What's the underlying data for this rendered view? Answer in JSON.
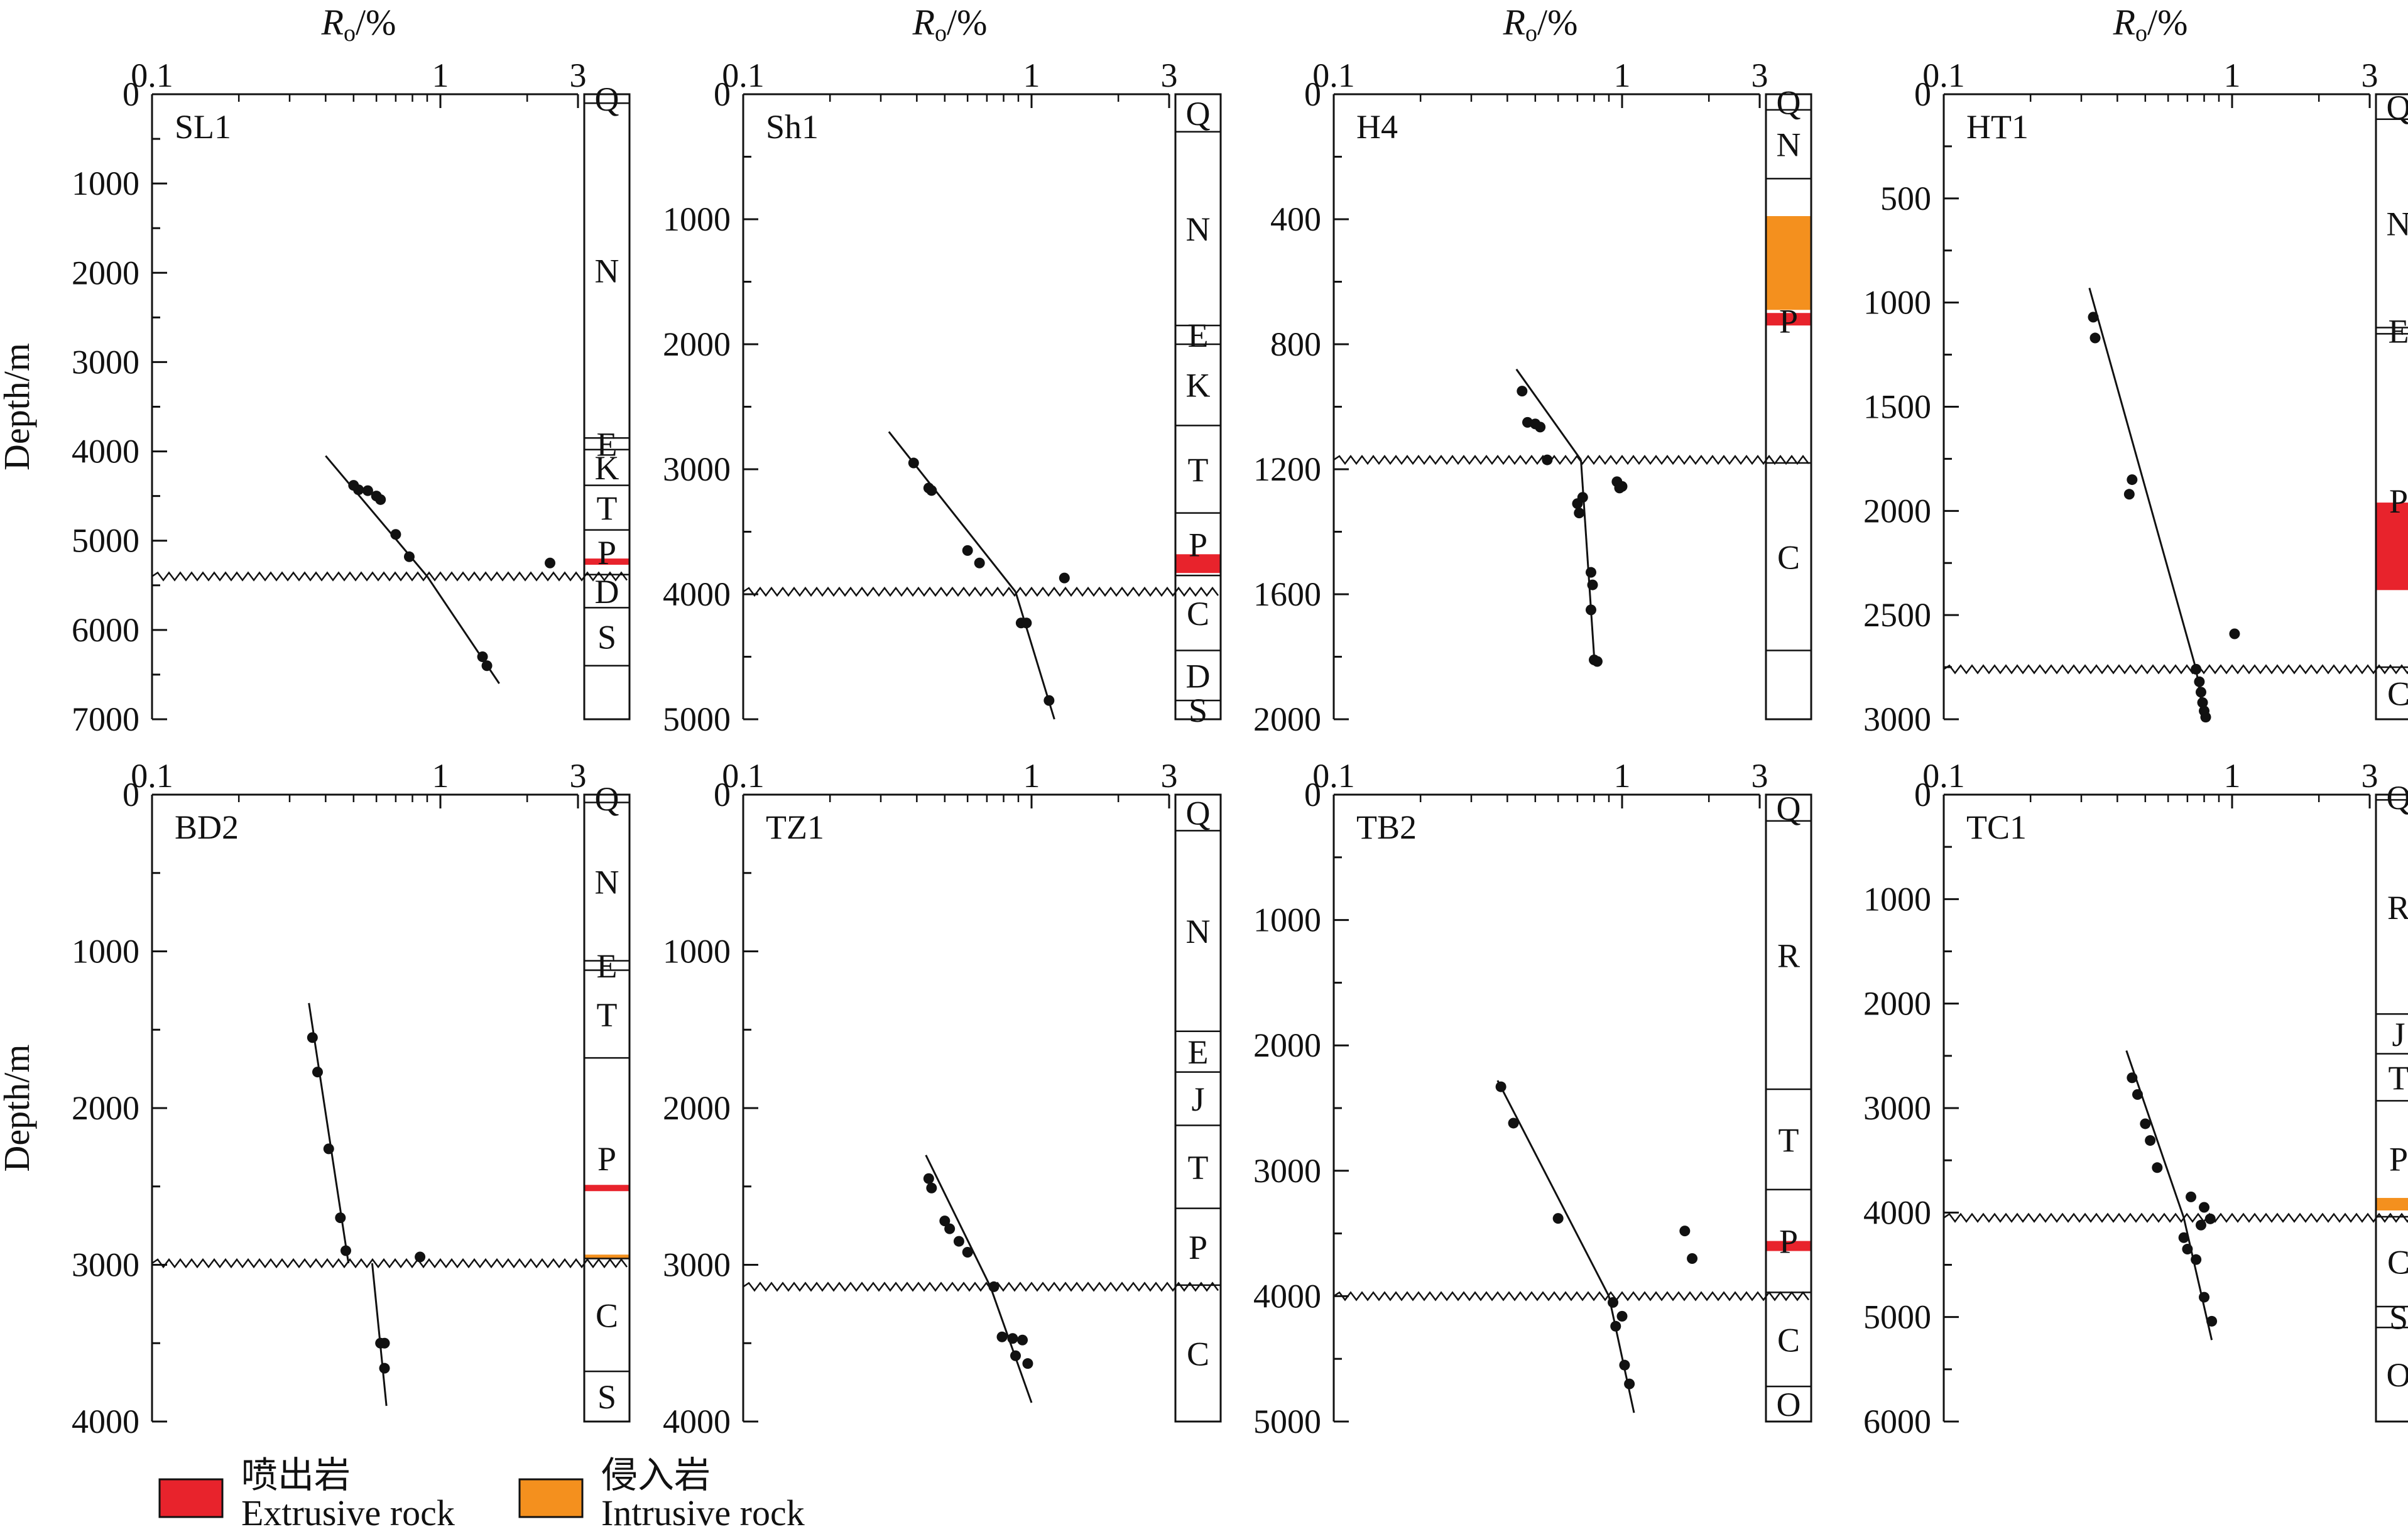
{
  "chart_data": [
    {
      "type": "scatter",
      "well": "SL1",
      "xlabel_main": "R",
      "xlabel_sub": "o",
      "xlabel_unit": "/%",
      "ylabel": "Depth/m",
      "xlim": [
        0.1,
        3
      ],
      "xscale": "log",
      "xticks": [
        "0.1",
        "1",
        "3"
      ],
      "ylim": [
        0,
        7000
      ],
      "yticks": [
        0,
        1000,
        2000,
        3000,
        4000,
        5000,
        6000,
        7000
      ],
      "unconformity_depth": 5400,
      "points": [
        [
          0.5,
          4380
        ],
        [
          0.52,
          4430
        ],
        [
          0.56,
          4440
        ],
        [
          0.6,
          4500
        ],
        [
          0.62,
          4540
        ],
        [
          0.7,
          4930
        ],
        [
          0.78,
          5180
        ],
        [
          1.4,
          6300
        ],
        [
          1.45,
          6400
        ],
        [
          2.4,
          5250
        ]
      ],
      "trend_upper": [
        [
          0.4,
          4050
        ],
        [
          0.9,
          5400
        ]
      ],
      "trend_lower": [
        [
          0.9,
          5400
        ],
        [
          1.6,
          6600
        ]
      ],
      "strata": [
        {
          "label": "Q",
          "top": 0,
          "base": 100
        },
        {
          "label": "N",
          "top": 100,
          "base": 3850
        },
        {
          "label": "E",
          "top": 3850,
          "base": 3980
        },
        {
          "label": "K",
          "top": 3980,
          "base": 4380
        },
        {
          "label": "T",
          "top": 4380,
          "base": 4880
        },
        {
          "label": "P",
          "top": 4880,
          "base": 5380
        },
        {
          "label": "D",
          "top": 5380,
          "base": 5750
        },
        {
          "label": "S",
          "top": 5750,
          "base": 6400
        },
        {
          "label": "",
          "top": 6400,
          "base": 7000
        }
      ],
      "rock_bands": [
        {
          "type": "extrusive",
          "top": 5200,
          "base": 5270
        }
      ]
    },
    {
      "type": "scatter",
      "well": "Sh1",
      "xlabel_main": "R",
      "xlabel_sub": "o",
      "xlabel_unit": "/%",
      "ylabel": "",
      "xlim": [
        0.1,
        3
      ],
      "xscale": "log",
      "xticks": [
        "0.1",
        "1",
        "3"
      ],
      "ylim": [
        0,
        5000
      ],
      "yticks": [
        0,
        1000,
        2000,
        3000,
        4000,
        5000
      ],
      "unconformity_depth": 3980,
      "points": [
        [
          0.39,
          2950
        ],
        [
          0.44,
          3150
        ],
        [
          0.45,
          3170
        ],
        [
          0.6,
          3650
        ],
        [
          0.66,
          3750
        ],
        [
          1.3,
          3870
        ],
        [
          0.92,
          4230
        ],
        [
          0.96,
          4230
        ],
        [
          1.15,
          4850
        ]
      ],
      "trend_upper": [
        [
          0.32,
          2700
        ],
        [
          0.88,
          3980
        ]
      ],
      "trend_lower": [
        [
          0.88,
          3980
        ],
        [
          1.2,
          5000
        ]
      ],
      "strata": [
        {
          "label": "Q",
          "top": 0,
          "base": 300
        },
        {
          "label": "N",
          "top": 300,
          "base": 1850
        },
        {
          "label": "E",
          "top": 1850,
          "base": 2000
        },
        {
          "label": "K",
          "top": 2000,
          "base": 2650
        },
        {
          "label": "T",
          "top": 2650,
          "base": 3350
        },
        {
          "label": "P",
          "top": 3350,
          "base": 3850
        },
        {
          "label": "C",
          "top": 3850,
          "base": 4450
        },
        {
          "label": "D",
          "top": 4450,
          "base": 4850
        },
        {
          "label": "S",
          "top": 4850,
          "base": 5000
        }
      ],
      "rock_bands": [
        {
          "type": "extrusive",
          "top": 3680,
          "base": 3830
        }
      ]
    },
    {
      "type": "scatter",
      "well": "H4",
      "xlabel_main": "R",
      "xlabel_sub": "o",
      "xlabel_unit": "/%",
      "ylabel": "",
      "xlim": [
        0.1,
        3
      ],
      "xscale": "log",
      "xticks": [
        "0.1",
        "1",
        "3"
      ],
      "ylim": [
        0,
        2000
      ],
      "yticks": [
        0,
        400,
        800,
        1200,
        1600,
        2000
      ],
      "unconformity_depth": 1170,
      "points": [
        [
          0.45,
          950
        ],
        [
          0.47,
          1050
        ],
        [
          0.5,
          1055
        ],
        [
          0.52,
          1065
        ],
        [
          0.55,
          1170
        ],
        [
          0.73,
          1290
        ],
        [
          0.7,
          1310
        ],
        [
          0.71,
          1340
        ],
        [
          0.78,
          1530
        ],
        [
          0.79,
          1570
        ],
        [
          0.78,
          1650
        ],
        [
          0.8,
          1810
        ],
        [
          0.82,
          1815
        ],
        [
          0.96,
          1240
        ],
        [
          0.98,
          1260
        ],
        [
          1.0,
          1255
        ]
      ],
      "trend_upper": [
        [
          0.43,
          880
        ],
        [
          0.72,
          1170
        ]
      ],
      "trend_lower": [
        [
          0.72,
          1170
        ],
        [
          0.8,
          1800
        ]
      ],
      "strata": [
        {
          "label": "Q",
          "top": 0,
          "base": 50
        },
        {
          "label": "N",
          "top": 50,
          "base": 270
        },
        {
          "label": "P",
          "top": 270,
          "base": 1180
        },
        {
          "label": "C",
          "top": 1180,
          "base": 1780
        },
        {
          "label": "",
          "top": 1780,
          "base": 2000
        }
      ],
      "rock_bands": [
        {
          "type": "intrusive",
          "top": 390,
          "base": 690
        },
        {
          "type": "extrusive",
          "top": 700,
          "base": 740
        }
      ]
    },
    {
      "type": "scatter",
      "well": "HT1",
      "xlabel_main": "R",
      "xlabel_sub": "o",
      "xlabel_unit": "/%",
      "ylabel": "",
      "xlim": [
        0.1,
        3
      ],
      "xscale": "log",
      "xticks": [
        "0.1",
        "1",
        "3"
      ],
      "ylim": [
        0,
        3000
      ],
      "yticks": [
        0,
        500,
        1000,
        1500,
        2000,
        2500,
        3000
      ],
      "unconformity_depth": 2760,
      "points": [
        [
          0.33,
          1070
        ],
        [
          0.335,
          1170
        ],
        [
          0.45,
          1850
        ],
        [
          0.44,
          1920
        ],
        [
          1.02,
          2590
        ],
        [
          0.75,
          2760
        ],
        [
          0.77,
          2820
        ],
        [
          0.78,
          2870
        ],
        [
          0.79,
          2920
        ],
        [
          0.8,
          2960
        ],
        [
          0.81,
          2990
        ]
      ],
      "trend_upper": [
        [
          0.32,
          930
        ],
        [
          0.75,
          2760
        ]
      ],
      "trend_lower": [
        [
          0.75,
          2760
        ],
        [
          0.8,
          3000
        ]
      ],
      "strata": [
        {
          "label": "Q",
          "top": 0,
          "base": 120
        },
        {
          "label": "N",
          "top": 120,
          "base": 1120
        },
        {
          "label": "E",
          "top": 1120,
          "base": 1150
        },
        {
          "label": "P",
          "top": 1150,
          "base": 2750
        },
        {
          "label": "C",
          "top": 2750,
          "base": 3000
        }
      ],
      "rock_bands": [
        {
          "type": "extrusive",
          "top": 1960,
          "base": 2380
        }
      ]
    },
    {
      "type": "scatter",
      "well": "BD2",
      "xlabel_main": "",
      "xlabel_sub": "",
      "xlabel_unit": "",
      "ylabel": "Depth/m",
      "xlim": [
        0.1,
        3
      ],
      "xscale": "log",
      "xticks": [
        "0.1",
        "1",
        "3"
      ],
      "ylim": [
        0,
        4000
      ],
      "yticks": [
        0,
        1000,
        2000,
        3000,
        4000
      ],
      "unconformity_depth": 2990,
      "points": [
        [
          0.36,
          1550
        ],
        [
          0.375,
          1770
        ],
        [
          0.41,
          2260
        ],
        [
          0.45,
          2700
        ],
        [
          0.47,
          2910
        ],
        [
          0.85,
          2950
        ],
        [
          0.62,
          3500
        ],
        [
          0.64,
          3500
        ],
        [
          0.64,
          3660
        ]
      ],
      "trend_upper": [
        [
          0.35,
          1330
        ],
        [
          0.48,
          2990
        ]
      ],
      "trend_lower": [
        [
          0.58,
          2990
        ],
        [
          0.65,
          3900
        ]
      ],
      "strata": [
        {
          "label": "Q",
          "top": 0,
          "base": 50
        },
        {
          "label": "N",
          "top": 50,
          "base": 1060
        },
        {
          "label": "E",
          "top": 1060,
          "base": 1120
        },
        {
          "label": "T",
          "top": 1120,
          "base": 1680
        },
        {
          "label": "P",
          "top": 1680,
          "base": 2960
        },
        {
          "label": "C",
          "top": 2960,
          "base": 3680
        },
        {
          "label": "S",
          "top": 3680,
          "base": 4000
        }
      ],
      "rock_bands": [
        {
          "type": "extrusive",
          "top": 2490,
          "base": 2530
        },
        {
          "type": "intrusive",
          "top": 2935,
          "base": 2960
        }
      ]
    },
    {
      "type": "scatter",
      "well": "TZ1",
      "xlabel_main": "",
      "xlabel_sub": "",
      "xlabel_unit": "",
      "ylabel": "",
      "xlim": [
        0.1,
        3
      ],
      "xscale": "log",
      "xticks": [
        "0.1",
        "1",
        "3"
      ],
      "ylim": [
        0,
        4000
      ],
      "yticks": [
        0,
        1000,
        2000,
        3000,
        4000
      ],
      "unconformity_depth": 3140,
      "points": [
        [
          0.44,
          2450
        ],
        [
          0.45,
          2510
        ],
        [
          0.5,
          2720
        ],
        [
          0.52,
          2770
        ],
        [
          0.56,
          2850
        ],
        [
          0.6,
          2920
        ],
        [
          0.74,
          3140
        ],
        [
          0.79,
          3460
        ],
        [
          0.86,
          3470
        ],
        [
          0.93,
          3480
        ],
        [
          0.88,
          3580
        ],
        [
          0.97,
          3630
        ]
      ],
      "trend_upper": [
        [
          0.43,
          2300
        ],
        [
          0.72,
          3140
        ]
      ],
      "trend_lower": [
        [
          0.72,
          3140
        ],
        [
          1.0,
          3880
        ]
      ],
      "strata": [
        {
          "label": "Q",
          "top": 0,
          "base": 230
        },
        {
          "label": "N",
          "top": 230,
          "base": 1510
        },
        {
          "label": "E",
          "top": 1510,
          "base": 1770
        },
        {
          "label": "J",
          "top": 1770,
          "base": 2110
        },
        {
          "label": "T",
          "top": 2110,
          "base": 2640
        },
        {
          "label": "P",
          "top": 2640,
          "base": 3130
        },
        {
          "label": "C",
          "top": 3130,
          "base": 4000
        }
      ],
      "rock_bands": []
    },
    {
      "type": "scatter",
      "well": "TB2",
      "xlabel_main": "",
      "xlabel_sub": "",
      "xlabel_unit": "",
      "ylabel": "",
      "xlim": [
        0.1,
        3
      ],
      "xscale": "log",
      "xticks": [
        "0.1",
        "1",
        "3"
      ],
      "ylim": [
        0,
        5000
      ],
      "yticks": [
        0,
        1000,
        2000,
        3000,
        4000,
        5000
      ],
      "unconformity_depth": 4000,
      "points": [
        [
          0.38,
          2330
        ],
        [
          0.42,
          2620
        ],
        [
          0.6,
          3380
        ],
        [
          1.65,
          3480
        ],
        [
          1.75,
          3700
        ],
        [
          0.93,
          4050
        ],
        [
          0.95,
          4240
        ],
        [
          1.0,
          4160
        ],
        [
          1.02,
          4550
        ],
        [
          1.06,
          4700
        ]
      ],
      "trend_upper": [
        [
          0.37,
          2280
        ],
        [
          0.9,
          4000
        ]
      ],
      "trend_lower": [
        [
          0.9,
          4000
        ],
        [
          1.1,
          4930
        ]
      ],
      "strata": [
        {
          "label": "Q",
          "top": 0,
          "base": 210
        },
        {
          "label": "R",
          "top": 210,
          "base": 2350
        },
        {
          "label": "T",
          "top": 2350,
          "base": 3150
        },
        {
          "label": "P",
          "top": 3150,
          "base": 3970
        },
        {
          "label": "C",
          "top": 3970,
          "base": 4720
        },
        {
          "label": "O",
          "top": 4720,
          "base": 5000
        }
      ],
      "rock_bands": [
        {
          "type": "extrusive",
          "top": 3560,
          "base": 3640
        }
      ]
    },
    {
      "type": "scatter",
      "well": "TC1",
      "xlabel_main": "",
      "xlabel_sub": "",
      "xlabel_unit": "",
      "ylabel": "",
      "xlim": [
        0.1,
        3
      ],
      "xscale": "log",
      "xticks": [
        "0.1",
        "1",
        "3"
      ],
      "ylim": [
        0,
        6000
      ],
      "yticks": [
        0,
        1000,
        2000,
        3000,
        4000,
        5000,
        6000
      ],
      "unconformity_depth": 4050,
      "points": [
        [
          0.45,
          2710
        ],
        [
          0.47,
          2870
        ],
        [
          0.5,
          3150
        ],
        [
          0.52,
          3310
        ],
        [
          0.55,
          3570
        ],
        [
          0.68,
          4240
        ],
        [
          0.7,
          4350
        ],
        [
          0.75,
          4450
        ],
        [
          0.8,
          4810
        ],
        [
          0.85,
          5040
        ],
        [
          0.72,
          3850
        ],
        [
          0.8,
          3950
        ],
        [
          0.84,
          4060
        ],
        [
          0.78,
          4120
        ]
      ],
      "trend_upper": [
        [
          0.43,
          2450
        ],
        [
          0.68,
          4050
        ]
      ],
      "trend_lower": [
        [
          0.68,
          4050
        ],
        [
          0.85,
          5220
        ]
      ],
      "strata": [
        {
          "label": "Q",
          "top": 0,
          "base": 50
        },
        {
          "label": "R",
          "top": 50,
          "base": 2100
        },
        {
          "label": "J",
          "top": 2100,
          "base": 2480
        },
        {
          "label": "T",
          "top": 2480,
          "base": 2930
        },
        {
          "label": "P",
          "top": 2930,
          "base": 4040
        },
        {
          "label": "C",
          "top": 4040,
          "base": 4900
        },
        {
          "label": "S",
          "top": 4900,
          "base": 5100
        },
        {
          "label": "O",
          "top": 5100,
          "base": 6000
        }
      ],
      "rock_bands": [
        {
          "type": "intrusive",
          "top": 3860,
          "base": 3980
        }
      ]
    }
  ],
  "legend": [
    {
      "type": "extrusive",
      "cn": "喷出岩",
      "en": "Extrusive rock",
      "color": "#e8232c"
    },
    {
      "type": "intrusive",
      "cn": "侵入岩",
      "en": "Intrusive rock",
      "color": "#f4901e"
    }
  ]
}
